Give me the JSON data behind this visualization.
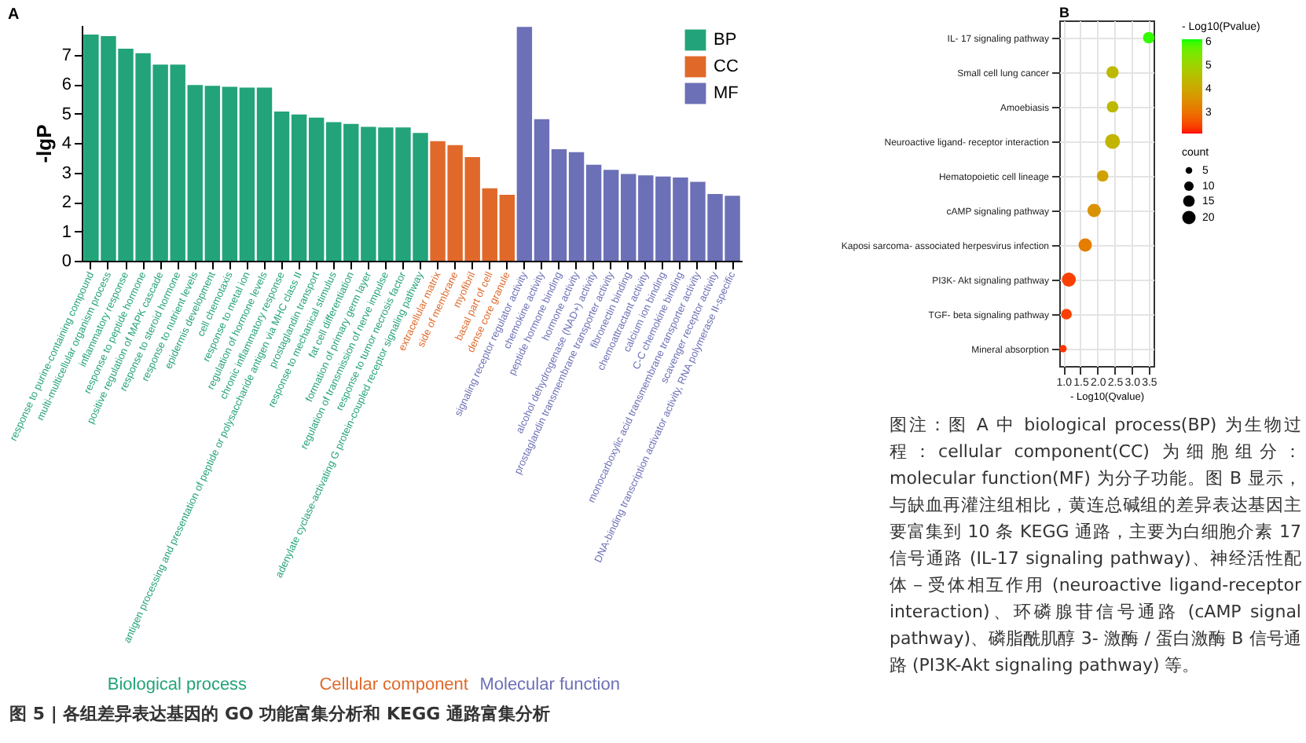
{
  "chart_data": [
    {
      "type": "bar",
      "title": "A",
      "ylabel": "-lgP",
      "ylim": [
        0,
        8
      ],
      "yticks": [
        0,
        1,
        2,
        3,
        4,
        5,
        6,
        7
      ],
      "grid": false,
      "legend": "top right",
      "categories": [
        "response to purine-containing compound",
        "multi-multicellular organism process",
        "inflammatory response",
        "response to peptide hormone",
        "positive regulation of MAPK cascade",
        "response to steroid hormone",
        "response to nutrient levels",
        "epidermis development",
        "cell chemotaxis",
        "response to metal ion",
        "regulation of hormone levels",
        "chronic inflammatory response",
        "antigen processing and presentation of peptide or polysaccharide antigen via MHC class II",
        "prostaglandin transport",
        "response to mechanical stimulus",
        "fat cell differentiation",
        "formation of primary germ layer",
        "regulation of transmission of nerve impulse",
        "response to tumor necrosis factor",
        "adenylate cyclase-activating G protein-coupled receptor signaling pathway",
        "extracellular matrix",
        "side of membrane",
        "myofibril",
        "basal part of cell",
        "dense core granule",
        "signaling receptor regulator activity",
        "chemokine activity",
        "peptide hormone binding",
        "hormone activity",
        "alcohol dehydrogenase (NAD+) activity",
        "prostaglandin transmembrane transporter activity",
        "fibronectin binding",
        "chemoattractant activity",
        "calcium ion binding",
        "C-C chemokine binding",
        "monocarboxylic acid transmembrane transporter activity",
        "scavenger receptor activity",
        "DNA-binding transcription activator activity, RNA polymerase II-specific"
      ],
      "series": [
        {
          "name": "BP",
          "color": "#23a37a",
          "values": [
            7.68,
            7.63,
            7.2,
            7.05,
            6.66,
            6.66,
            5.97,
            5.94,
            5.91,
            5.88,
            5.88,
            5.07,
            4.97,
            4.86,
            4.71,
            4.65,
            4.55,
            4.53,
            4.53,
            4.34,
            null,
            null,
            null,
            null,
            null,
            null,
            null,
            null,
            null,
            null,
            null,
            null,
            null,
            null,
            null,
            null,
            null,
            null
          ]
        },
        {
          "name": "CC",
          "color": "#e0692a",
          "values": [
            null,
            null,
            null,
            null,
            null,
            null,
            null,
            null,
            null,
            null,
            null,
            null,
            null,
            null,
            null,
            null,
            null,
            null,
            null,
            null,
            4.06,
            3.93,
            3.52,
            2.46,
            2.24,
            null,
            null,
            null,
            null,
            null,
            null,
            null,
            null,
            null,
            null,
            null,
            null,
            null
          ]
        },
        {
          "name": "MF",
          "color": "#6c70b6",
          "values": [
            null,
            null,
            null,
            null,
            null,
            null,
            null,
            null,
            null,
            null,
            null,
            null,
            null,
            null,
            null,
            null,
            null,
            null,
            null,
            null,
            null,
            null,
            null,
            null,
            null,
            7.94,
            4.81,
            3.79,
            3.69,
            3.26,
            3.09,
            2.95,
            2.9,
            2.86,
            2.83,
            2.68,
            2.27,
            2.21
          ]
        }
      ],
      "annotations": [
        "Biological process",
        "Cellular component",
        "Molecular function"
      ]
    },
    {
      "type": "bubble",
      "title": "B",
      "orientation": "horizontal",
      "xlabel": "- Log10(Qvalue)",
      "xlim": [
        0.88,
        3.64
      ],
      "xticks": [
        {
          "value": 1,
          "label": "1.0"
        },
        1.5,
        {
          "value": 2,
          "label": "2.0"
        },
        2.5,
        {
          "value": 3,
          "label": "3.0"
        },
        3.5
      ],
      "grid": true,
      "categories": [
        "IL- 17 signaling pathway",
        "Small cell lung cancer",
        "Amoebiasis",
        "Neuroactive ligand- receptor interaction",
        "Hematopoietic cell lineage",
        "cAMP signaling pathway",
        "Kaposi sarcoma- associated herpesvirus infection",
        "PI3K- Akt signaling pathway",
        "TGF- beta signaling pathway",
        "Mineral absorption"
      ],
      "values": [
        3.5,
        2.44,
        2.44,
        2.44,
        2.15,
        1.9,
        1.64,
        1.16,
        1.09,
        0.99
      ],
      "sizes": [
        15,
        17,
        15,
        25,
        15,
        20,
        20,
        22,
        13,
        6
      ],
      "size_legend": [
        5,
        10,
        15,
        20
      ],
      "legend_title": "count",
      "cvalues": [
        6.0,
        4.4,
        4.4,
        4.3,
        3.9,
        3.6,
        3.2,
        2.4,
        2.4,
        2.3
      ],
      "clim": [
        2.1,
        6.1
      ],
      "cticks": [
        3,
        4,
        5,
        6
      ],
      "clabel": "- Log10(Pvalue)"
    },
    {
      "type": "other",
      "title": "图 5 | 各组差异表达基因的 GO 功能富集分析和 KEGG 通路富集分析",
      "annotations": [
        "图注：图 A 中 biological process(BP) 为生物过程：cellular component(CC) 为细胞组分：molecular function(MF) 为分子功能。图 B 显示，与缺血再灌注组相比，黄连总碱组的差异表达基因主要富集到 10 条 KEGG 通路，主要为白细胞介素 17 信号通路 (IL-17 signaling pathway)、神经活性配体－受体相互作用 (neuroactive ligand-receptor interaction)、环磷腺苷信号通路 (cAMP signal pathway)、磷脂酰肌醇 3- 激酶 / 蛋白激酶 B 信号通路 (PI3K-Akt signaling pathway) 等。"
      ]
    }
  ]
}
